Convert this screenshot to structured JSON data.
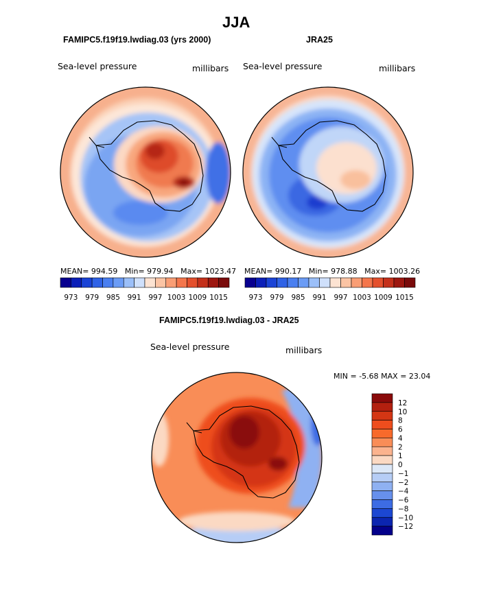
{
  "figure_title": "JJA",
  "panels": [
    {
      "id": "model",
      "title": "FAMIPC5.f19f19.lwdiag.03 (yrs 2000)",
      "variable": "Sea-level pressure",
      "units": "millibars",
      "stats": {
        "mean_label": "MEAN=",
        "mean": "994.59",
        "min_label": "Min=",
        "min": "979.94",
        "max_label": "Max=",
        "max": "1023.47"
      }
    },
    {
      "id": "obs",
      "title": "JRA25",
      "variable": "Sea-level pressure",
      "units": "millibars",
      "stats": {
        "mean_label": "MEAN=",
        "mean": "990.17",
        "min_label": "Min=",
        "min": "978.88",
        "max_label": "Max=",
        "max": "1003.26"
      }
    },
    {
      "id": "diff",
      "title": "FAMIPC5.f19f19.lwdiag.03 - JRA25",
      "variable": "Sea-level pressure",
      "units": "millibars",
      "stats": {
        "min_label": "MIN =",
        "min": "-5.68",
        "max_label": "MAX =",
        "max": "23.04"
      }
    }
  ],
  "chart_data": [
    {
      "type": "polar-stereographic contour map",
      "region": "Antarctica / Southern Ocean",
      "title": "FAMIPC5.f19f19.lwdiag.03 (yrs 2000)",
      "variable": "Sea-level pressure",
      "units": "millibars",
      "mean": 994.59,
      "min": 979.94,
      "max": 1023.47,
      "colorbar_levels": [
        973,
        976,
        979,
        982,
        985,
        988,
        991,
        994,
        997,
        1000,
        1003,
        1006,
        1009,
        1012,
        1015
      ],
      "colorbar_tick_labels": [
        "973",
        "979",
        "985",
        "991",
        "997",
        "1003",
        "1009",
        "1015"
      ],
      "colors": [
        "#08008f",
        "#0b1fb8",
        "#1a43d6",
        "#2f62e6",
        "#4a7ff0",
        "#6b9cf5",
        "#9bbff8",
        "#cfe0fb",
        "#fce3d2",
        "#fbc4a4",
        "#f99e75",
        "#f4764c",
        "#e4502d",
        "#c4301b",
        "#9d1710",
        "#7a0b0b"
      ]
    },
    {
      "type": "polar-stereographic contour map",
      "region": "Antarctica / Southern Ocean",
      "title": "JRA25",
      "variable": "Sea-level pressure",
      "units": "millibars",
      "mean": 990.17,
      "min": 978.88,
      "max": 1003.26,
      "colorbar_levels": [
        973,
        976,
        979,
        982,
        985,
        988,
        991,
        994,
        997,
        1000,
        1003,
        1006,
        1009,
        1012,
        1015
      ],
      "colorbar_tick_labels": [
        "973",
        "979",
        "985",
        "991",
        "997",
        "1003",
        "1009",
        "1015"
      ],
      "colors": [
        "#08008f",
        "#0b1fb8",
        "#1a43d6",
        "#2f62e6",
        "#4a7ff0",
        "#6b9cf5",
        "#9bbff8",
        "#cfe0fb",
        "#fce3d2",
        "#fbc4a4",
        "#f99e75",
        "#f4764c",
        "#e4502d",
        "#c4301b",
        "#9d1710",
        "#7a0b0b"
      ]
    },
    {
      "type": "polar-stereographic contour map (difference)",
      "region": "Antarctica / Southern Ocean",
      "title": "FAMIPC5.f19f19.lwdiag.03 - JRA25",
      "variable": "Sea-level pressure",
      "units": "millibars",
      "min": -5.68,
      "max": 23.04,
      "colorbar_levels": [
        12,
        10,
        8,
        6,
        4,
        2,
        1,
        0,
        -1,
        -2,
        -4,
        -6,
        -8,
        -10,
        -12
      ],
      "colorbar_tick_labels": [
        "12",
        "10",
        "8",
        "6",
        "4",
        "2",
        "1",
        "0",
        "−1",
        "−2",
        "−4",
        "−6",
        "−8",
        "−10",
        "−12"
      ],
      "colors": [
        "#8a0a0a",
        "#b3200f",
        "#d43614",
        "#ee4d1d",
        "#f86a2b",
        "#f98d57",
        "#fbb38e",
        "#fbd9c3",
        "#dce8f8",
        "#b6cdf6",
        "#8fb1f2",
        "#6790ec",
        "#3d6ce4",
        "#1c47d2",
        "#0b25b0",
        "#03008a"
      ]
    }
  ]
}
